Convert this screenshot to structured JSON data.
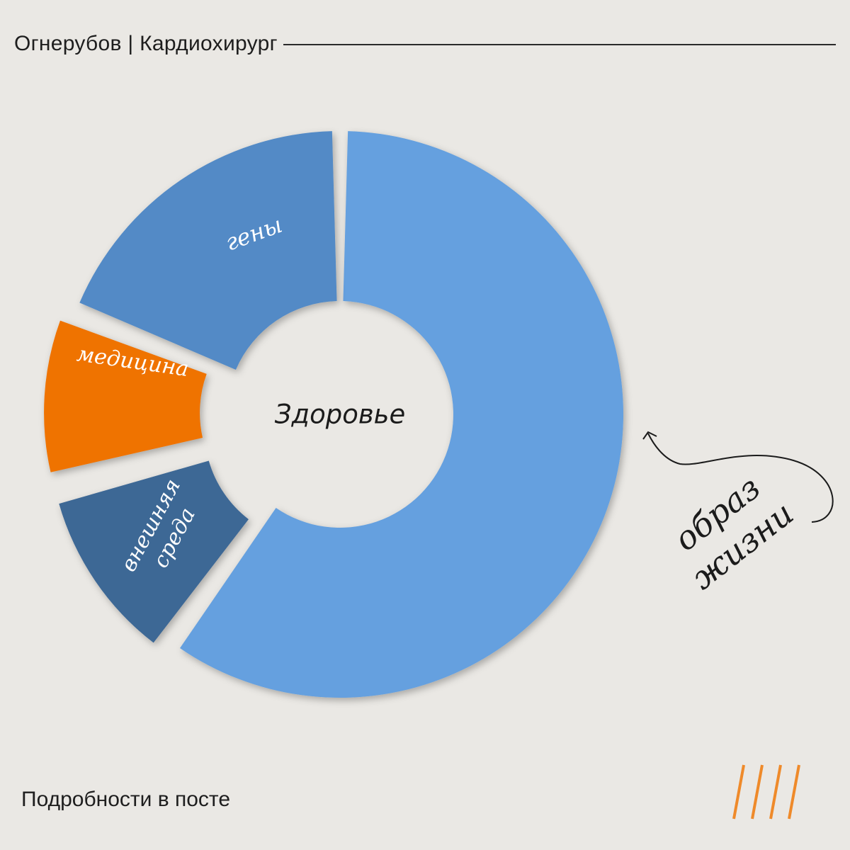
{
  "header": {
    "title": "Огнерубов | Кардиохирург"
  },
  "footer": {
    "text": "Подробности в посте"
  },
  "colors": {
    "background": "#eae8e4",
    "lifestyle": "#65a0df",
    "genes": "#528ac6",
    "medicine": "#ef7300",
    "environment": "#3e6795",
    "accent": "#ef8a2a",
    "ink": "#1b1b1b"
  },
  "chart_data": {
    "type": "pie",
    "center_label": "Здоровье",
    "slices": [
      {
        "label": "образ жизни",
        "label_lines": [
          "образ",
          "жизни"
        ],
        "value": 60,
        "color": "#65a0df",
        "exploded": false
      },
      {
        "label": "внешняя среда",
        "label_lines": [
          "внешняя",
          "среда"
        ],
        "value": 11,
        "color": "#3e6795",
        "exploded": true
      },
      {
        "label": "медицина",
        "label_lines": [
          "медицина"
        ],
        "value": 10,
        "color": "#ef7300",
        "exploded": true
      },
      {
        "label": "гены",
        "label_lines": [
          "гены"
        ],
        "value": 19,
        "color": "#528ac6",
        "exploded": false
      }
    ]
  },
  "decoration": {
    "stripes_count": 4,
    "stripes_icon": "slash-stripes-icon",
    "arrow_icon": "curved-arrow-icon"
  }
}
